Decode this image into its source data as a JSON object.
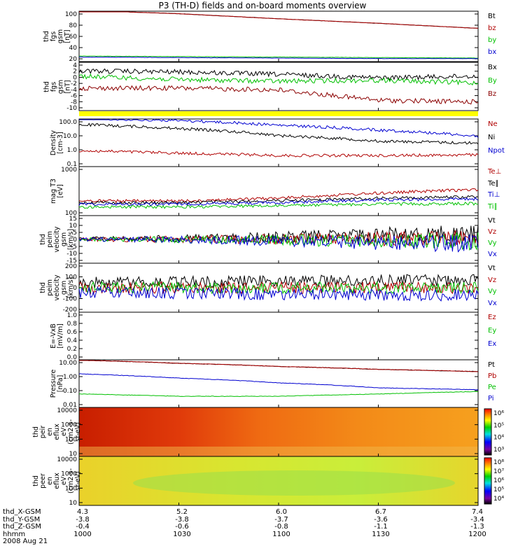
{
  "title": "P3 (TH-D) fields and on-board moments overview",
  "panels": [
    {
      "id": "bgse",
      "ylabel": [
        "thd",
        "fgs",
        "gsm",
        "[nT]"
      ],
      "ticks": [
        "100",
        "80",
        "60",
        "40",
        "20"
      ],
      "legend": [
        {
          "t": "Bt",
          "c": "#000000"
        },
        {
          "t": "bz",
          "c": "#b00000"
        },
        {
          "t": "by",
          "c": "#00c000"
        },
        {
          "t": "bx",
          "c": "#0000d0"
        }
      ]
    },
    {
      "id": "bgsm",
      "ylabel": [
        "thd",
        "fgs",
        "gsm",
        "[nT]"
      ],
      "ticks": [
        "4",
        "2",
        "0",
        "-2",
        "-4",
        "-6",
        "-8",
        "-10"
      ],
      "legend": [
        {
          "t": "Bx",
          "c": "#000000"
        },
        {
          "t": "By",
          "c": "#00c000"
        },
        {
          "t": "Bz",
          "c": "#8b0000"
        }
      ]
    },
    {
      "id": "dens",
      "ylabel": [
        "Density",
        "[cm-3]"
      ],
      "ticks": [
        "100.0",
        "10.0",
        "1.0",
        "0.1"
      ],
      "legend": [
        {
          "t": "Ne",
          "c": "#b00000"
        },
        {
          "t": "Ni",
          "c": "#000000"
        },
        {
          "t": "Npot",
          "c": "#0000d0"
        }
      ]
    },
    {
      "id": "temp",
      "ylabel": [
        "mag T3",
        "[eV]"
      ],
      "ticks": [
        "1000",
        "100"
      ],
      "legend": [
        {
          "t": "Te⊥",
          "c": "#b00000"
        },
        {
          "t": "Te∥",
          "c": "#000000"
        },
        {
          "t": "Ti⊥",
          "c": "#0000d0"
        },
        {
          "t": "Ti∥",
          "c": "#00c000"
        }
      ]
    },
    {
      "id": "vele",
      "ylabel": [
        "thd",
        "peim",
        "velocity",
        "gsm",
        "[km/s]"
      ],
      "ticks": [
        "15",
        "10",
        "5",
        "0",
        "-5",
        "-10",
        "-15"
      ],
      "legend": [
        {
          "t": "Vt",
          "c": "#000000"
        },
        {
          "t": "Vz",
          "c": "#b00000"
        },
        {
          "t": "Vy",
          "c": "#00c000"
        },
        {
          "t": "Vx",
          "c": "#0000d0"
        }
      ]
    },
    {
      "id": "veli",
      "ylabel": [
        "thd",
        "peim",
        "velocity",
        "gsm",
        "[km/s]"
      ],
      "ticks": [
        "200",
        "100",
        "0",
        "-100",
        "-200"
      ],
      "legend": [
        {
          "t": "Vt",
          "c": "#000000"
        },
        {
          "t": "Vz",
          "c": "#b00000"
        },
        {
          "t": "Vy",
          "c": "#00c000"
        },
        {
          "t": "Vx",
          "c": "#0000d0"
        }
      ]
    },
    {
      "id": "efld",
      "ylabel": [
        "E=-VxB",
        "[mV/m]"
      ],
      "ticks": [
        "1.0",
        "0.8",
        "0.6",
        "0.4",
        "0.2",
        "0.0"
      ],
      "legend": [
        {
          "t": "Ez",
          "c": "#b00000"
        },
        {
          "t": "Ey",
          "c": "#00c000"
        },
        {
          "t": "Ex",
          "c": "#0000d0"
        }
      ]
    },
    {
      "id": "pres",
      "ylabel": [
        "Pressure",
        "[nPa]"
      ],
      "ticks": [
        "10.00",
        "1.00",
        "0.10",
        "0.01"
      ],
      "legend": [
        {
          "t": "Pt",
          "c": "#000000"
        },
        {
          "t": "Pb",
          "c": "#b00000"
        },
        {
          "t": "Pe",
          "c": "#00c000"
        },
        {
          "t": "Pi",
          "c": "#0000d0"
        }
      ]
    },
    {
      "id": "ispec",
      "ylabel": [
        "thd",
        "peir",
        "en",
        "eflux",
        "eV",
        "(cm2-s-",
        "sr-eV)"
      ],
      "ticks": [
        "10000",
        "1000",
        "100",
        "10"
      ],
      "colorbar": [
        "10⁶",
        "10⁵",
        "10⁴",
        "10³"
      ]
    },
    {
      "id": "espec",
      "ylabel": [
        "thd",
        "peer",
        "en",
        "eflux",
        "eV",
        "(cm2-s-",
        "sr-eV)"
      ],
      "ticks": [
        "10000",
        "1000",
        "100",
        "10"
      ],
      "colorbar": [
        "10⁸",
        "10⁷",
        "10⁶",
        "10⁵",
        "10⁴"
      ]
    }
  ],
  "footer": {
    "rows": [
      {
        "label": "thd_X-GSM",
        "values": [
          "4.3",
          "5.2",
          "6.0",
          "6.7",
          "7.4"
        ]
      },
      {
        "label": "thd_Y-GSM",
        "values": [
          "-3.8",
          "-3.8",
          "-3.7",
          "-3.6",
          "-3.4"
        ]
      },
      {
        "label": "thd_Z-GSM",
        "values": [
          "-0.4",
          "-0.6",
          "-0.8",
          "-1.1",
          "-1.3"
        ]
      },
      {
        "label": "hhmm",
        "values": [
          "1000",
          "1030",
          "1100",
          "1130",
          "1200"
        ]
      }
    ],
    "date": "2008 Aug 21"
  },
  "chart_data": {
    "type": "line",
    "title": "P3 (TH-D) fields and on-board moments overview",
    "x_ticks": [
      "1000",
      "1030",
      "1100",
      "1130",
      "1200"
    ],
    "panels": [
      {
        "name": "thd fgs gsm [nT]",
        "ylim": [
          0,
          100
        ],
        "series": [
          {
            "name": "Bt",
            "values": [
              102,
              95,
              85,
              76,
              66
            ]
          },
          {
            "name": "bz",
            "values": [
              102,
              95,
              85,
              76,
              66
            ]
          },
          {
            "name": "by",
            "values": [
              11,
              10,
              9,
              8,
              7
            ]
          },
          {
            "name": "bx",
            "values": [
              9,
              8,
              7,
              6,
              6
            ]
          }
        ]
      },
      {
        "name": "thd fgs gsm [nT]",
        "ylim": [
          -10,
          4
        ],
        "series": [
          {
            "name": "Bx",
            "values": [
              1.5,
              1.2,
              0.5,
              -0.5,
              0
            ]
          },
          {
            "name": "By",
            "values": [
              0,
              -1,
              -1.5,
              -1.2,
              -2
            ]
          },
          {
            "name": "Bz",
            "values": [
              -3.5,
              -3.5,
              -4,
              -7,
              -7.5
            ]
          }
        ]
      },
      {
        "name": "Density [cm-3]",
        "scale": "log",
        "ylim": [
          0.1,
          100
        ],
        "series": [
          {
            "name": "Ne",
            "values": [
              1.0,
              0.7,
              0.5,
              0.5,
              0.55
            ]
          },
          {
            "name": "Ni",
            "values": [
              45,
              25,
              9,
              4,
              3
            ]
          },
          {
            "name": "Npot",
            "values": [
              110,
              80,
              40,
              20,
              8
            ]
          }
        ]
      },
      {
        "name": "mag T3 [eV]",
        "scale": "log",
        "ylim": [
          100,
          5000
        ],
        "series": [
          {
            "name": "Te⊥",
            "values": [
              320,
              320,
              400,
              600,
              800
            ]
          },
          {
            "name": "Te∥",
            "values": [
              280,
              280,
              330,
              400,
              450
            ]
          },
          {
            "name": "Ti⊥",
            "values": [
              250,
              250,
              280,
              350,
              380
            ]
          },
          {
            "name": "Ti∥",
            "values": [
              200,
              200,
              220,
              250,
              260
            ]
          }
        ]
      },
      {
        "name": "thd peim velocity gsm [km/s]",
        "ylim": [
          -15,
          15
        ],
        "series": [
          {
            "name": "Vt",
            "values": [
              0.5,
              0.5,
              1.5,
              3,
              3.5
            ]
          },
          {
            "name": "Vz",
            "values": [
              0,
              0,
              0,
              0.5,
              0.5
            ]
          },
          {
            "name": "Vy",
            "values": [
              0,
              0,
              -0.5,
              -1,
              -1
            ]
          },
          {
            "name": "Vx",
            "values": [
              0,
              0,
              -1,
              -2,
              -2.5
            ]
          }
        ]
      },
      {
        "name": "thd peim velocity gsm [km/s]",
        "ylim": [
          -200,
          200
        ],
        "series": [
          {
            "name": "Vt",
            "values": [
              40,
              45,
              55,
              60,
              60
            ]
          },
          {
            "name": "Vz",
            "values": [
              0,
              0,
              0,
              0,
              0
            ]
          },
          {
            "name": "Vy",
            "values": [
              0,
              0,
              0,
              0,
              0
            ]
          },
          {
            "name": "Vx",
            "values": [
              -40,
              -45,
              -55,
              -60,
              -60
            ]
          }
        ]
      },
      {
        "name": "E=-VxB [mV/m]",
        "ylim": [
          0,
          1
        ],
        "series": []
      },
      {
        "name": "Pressure [nPa]",
        "scale": "log",
        "ylim": [
          0.01,
          10
        ],
        "series": [
          {
            "name": "Pt",
            "values": [
              9.5,
              6,
              3.8,
              2.5,
              1.8
            ]
          },
          {
            "name": "Pb",
            "values": [
              9.5,
              6,
              3.8,
              2.5,
              1.8
            ]
          },
          {
            "name": "Pe",
            "values": [
              0.07,
              0.05,
              0.05,
              0.07,
              0.1
            ]
          },
          {
            "name": "Pi",
            "values": [
              1.3,
              0.7,
              0.35,
              0.17,
              0.13
            ]
          }
        ]
      }
    ]
  }
}
